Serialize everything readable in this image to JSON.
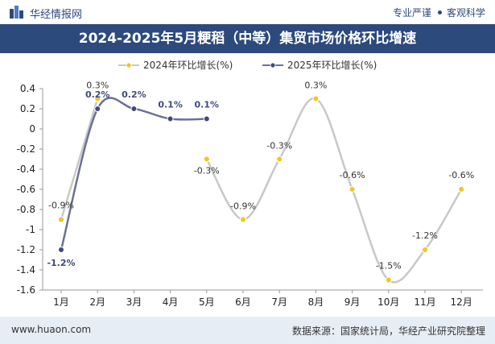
{
  "header": {
    "brand": "华经情报网",
    "tagline_left": "专业严谨",
    "tagline_right": "客观科学"
  },
  "title": "2024-2025年5月粳稻（中等）集贸市场价格环比增速",
  "footer": {
    "url": "www.huaon.com",
    "source": "数据来源：国家统计局，华经产业研究院整理"
  },
  "colors": {
    "header_bg": "#2c4a7c",
    "footer_bg": "#e7edf5",
    "series_2024": "#f5c518",
    "series_2024_line": "#c8c8c8",
    "series_2025": "#3e4a7a",
    "series_2025_line": "#6a7196"
  },
  "chart_data": {
    "type": "line",
    "title": "2024-2025年5月粳稻（中等）集贸市场价格环比增速",
    "categories": [
      "1月",
      "2月",
      "3月",
      "4月",
      "5月",
      "6月",
      "7月",
      "8月",
      "9月",
      "10月",
      "11月",
      "12月"
    ],
    "series": [
      {
        "name": "2024年环比增长(%)",
        "values": [
          -0.9,
          0.3,
          null,
          null,
          -0.3,
          -0.9,
          -0.3,
          0.3,
          -0.6,
          -1.5,
          -1.2,
          -0.6
        ]
      },
      {
        "name": "2025年环比增长(%)",
        "values": [
          -1.2,
          0.2,
          0.2,
          0.1,
          0.1,
          null,
          null,
          null,
          null,
          null,
          null,
          null
        ]
      }
    ],
    "yticks": [
      "0.4",
      "0.2",
      "0",
      "-0.2",
      "-0.4",
      "-0.6",
      "-0.8",
      "-1",
      "-1.2",
      "-1.4",
      "-1.6"
    ],
    "ylim": [
      -1.6,
      0.4
    ],
    "grid": false,
    "legend": "top"
  }
}
